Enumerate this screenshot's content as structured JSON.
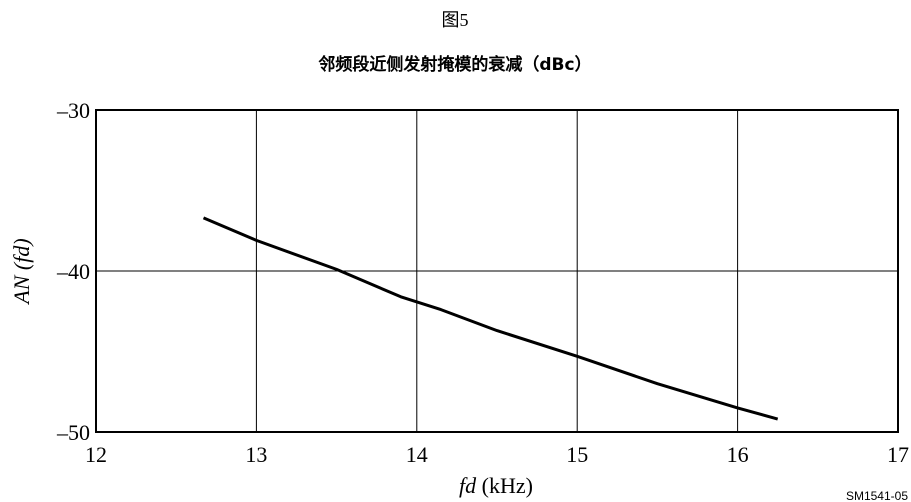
{
  "figure_label": "图5",
  "chart_data": {
    "type": "line",
    "title": "邻频段近侧发射掩模的衰减（dBc）",
    "xlabel_var": "fd",
    "xlabel_unit": " (kHz)",
    "ylabel_var": "AN (fd)",
    "xlim": [
      12,
      17
    ],
    "ylim": [
      -50,
      -30
    ],
    "x_ticks": [
      12,
      13,
      14,
      15,
      16,
      17
    ],
    "y_ticks": [
      -50,
      -40,
      -30
    ],
    "x_tick_labels": [
      "12",
      "13",
      "14",
      "15",
      "16",
      "17"
    ],
    "y_tick_labels": [
      "–50",
      "–40",
      "–30"
    ],
    "grid": true,
    "series": [
      {
        "x": [
          12.67,
          13.0,
          13.5,
          13.9,
          14.15,
          14.5,
          15.0,
          15.5,
          16.0,
          16.25
        ],
        "y": [
          -36.7,
          -38.1,
          -39.9,
          -41.6,
          -42.4,
          -43.7,
          -45.3,
          -47.0,
          -48.5,
          -49.2
        ]
      }
    ]
  },
  "reference_code": "SM1541-05",
  "colors": {
    "line": "#000000",
    "grid": "#000000",
    "background": "#ffffff"
  }
}
